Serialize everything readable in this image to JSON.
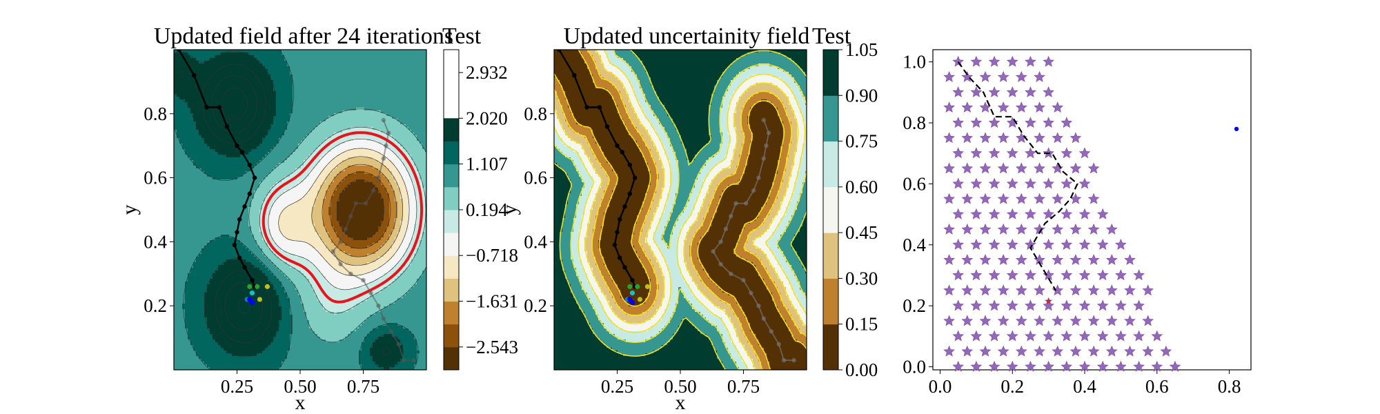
{
  "figure": {
    "panels": [
      {
        "title": "Updated field after 24 iterations",
        "colorbar_label": "Test",
        "xlabel": "x",
        "ylabel": "y"
      },
      {
        "title": "Updated uncertainity field",
        "colorbar_label": "Test",
        "xlabel": "x",
        "ylabel": "y"
      },
      {
        "title": "",
        "xlabel": "",
        "ylabel": ""
      }
    ]
  },
  "chart_data": [
    {
      "type": "heatmap",
      "title": "Updated field after 24 iterations",
      "xlabel": "x",
      "ylabel": "y",
      "xlim": [
        0,
        1
      ],
      "ylim": [
        0,
        1
      ],
      "xticks": [
        "0.25",
        "0.50",
        "0.75"
      ],
      "yticks": [
        "0.2",
        "0.4",
        "0.6",
        "0.8"
      ],
      "colorbar": {
        "label": "Test",
        "ticks": [
          "−2.543",
          "−1.631",
          "−0.718",
          "0.194",
          "1.107",
          "2.020",
          "2.932"
        ],
        "levels": [
          -3.0,
          -2.543,
          -2.087,
          -1.631,
          -1.175,
          -0.718,
          -0.262,
          0.194,
          0.65,
          1.107,
          1.563,
          2.02,
          2.476,
          2.932,
          3.388
        ],
        "colors": [
          "#543005",
          "#8c510a",
          "#bf812d",
          "#dfc27d",
          "#f6e8c3",
          "#f5f5f5",
          "#c7eae5",
          "#80cdc1",
          "#35978f",
          "#01665e",
          "#003c30"
        ]
      },
      "highlight_contour": {
        "level": 0,
        "color": "#e8141b"
      },
      "path": [
        [
          0.02,
          1.0
        ],
        [
          0.08,
          0.92
        ],
        [
          0.13,
          0.82
        ],
        [
          0.18,
          0.82
        ],
        [
          0.21,
          0.76
        ],
        [
          0.25,
          0.7
        ],
        [
          0.27,
          0.68
        ],
        [
          0.3,
          0.64
        ],
        [
          0.32,
          0.6
        ],
        [
          0.3,
          0.55
        ],
        [
          0.28,
          0.51
        ],
        [
          0.26,
          0.47
        ],
        [
          0.25,
          0.43
        ],
        [
          0.24,
          0.39
        ],
        [
          0.26,
          0.35
        ],
        [
          0.28,
          0.32
        ],
        [
          0.31,
          0.28
        ],
        [
          0.32,
          0.26
        ]
      ],
      "path_faded": [
        [
          0.83,
          0.78
        ],
        [
          0.85,
          0.74
        ],
        [
          0.84,
          0.7
        ],
        [
          0.83,
          0.66
        ],
        [
          0.81,
          0.6
        ],
        [
          0.79,
          0.56
        ],
        [
          0.76,
          0.52
        ],
        [
          0.72,
          0.52
        ],
        [
          0.7,
          0.48
        ],
        [
          0.68,
          0.44
        ],
        [
          0.66,
          0.4
        ],
        [
          0.63,
          0.37
        ],
        [
          0.66,
          0.33
        ],
        [
          0.7,
          0.3
        ],
        [
          0.75,
          0.28
        ],
        [
          0.78,
          0.24
        ],
        [
          0.81,
          0.2
        ],
        [
          0.83,
          0.16
        ],
        [
          0.86,
          0.12
        ],
        [
          0.89,
          0.08
        ],
        [
          0.91,
          0.03
        ],
        [
          0.95,
          0.03
        ]
      ],
      "samples": [
        {
          "x": 0.3,
          "y": 0.26,
          "color": "#2ca02c"
        },
        {
          "x": 0.33,
          "y": 0.26,
          "color": "#2ca02c"
        },
        {
          "x": 0.37,
          "y": 0.26,
          "color": "#bcbd22"
        },
        {
          "x": 0.31,
          "y": 0.24,
          "color": "#17becf"
        },
        {
          "x": 0.29,
          "y": 0.22,
          "color": "#1f77b4"
        },
        {
          "x": 0.3,
          "y": 0.22,
          "color": "#0000ff"
        },
        {
          "x": 0.34,
          "y": 0.22,
          "color": "#bcbd22"
        },
        {
          "x": 0.31,
          "y": 0.21,
          "color": "#0000ff"
        }
      ]
    },
    {
      "type": "heatmap",
      "title": "Updated uncertainity field",
      "xlabel": "x",
      "ylabel": "y",
      "xlim": [
        0,
        1
      ],
      "ylim": [
        0,
        1
      ],
      "xticks": [
        "0.25",
        "0.50",
        "0.75"
      ],
      "yticks": [
        "0.2",
        "0.4",
        "0.6",
        "0.8"
      ],
      "colorbar": {
        "label": "Test",
        "ticks": [
          "0.00",
          "0.15",
          "0.30",
          "0.45",
          "0.60",
          "0.75",
          "0.90",
          "1.05"
        ],
        "levels": [
          0.0,
          0.15,
          0.3,
          0.45,
          0.6,
          0.75,
          0.9,
          1.05
        ],
        "colors": [
          "#543005",
          "#bf812d",
          "#dfc27d",
          "#f6f6f0",
          "#c7eae5",
          "#35978f",
          "#003c30"
        ]
      },
      "path": [
        [
          0.02,
          1.0
        ],
        [
          0.08,
          0.92
        ],
        [
          0.13,
          0.82
        ],
        [
          0.18,
          0.82
        ],
        [
          0.21,
          0.76
        ],
        [
          0.25,
          0.7
        ],
        [
          0.27,
          0.68
        ],
        [
          0.3,
          0.64
        ],
        [
          0.32,
          0.6
        ],
        [
          0.3,
          0.55
        ],
        [
          0.28,
          0.51
        ],
        [
          0.26,
          0.47
        ],
        [
          0.25,
          0.43
        ],
        [
          0.24,
          0.39
        ],
        [
          0.26,
          0.35
        ],
        [
          0.28,
          0.32
        ],
        [
          0.31,
          0.28
        ],
        [
          0.32,
          0.26
        ]
      ],
      "path_faded": [
        [
          0.83,
          0.78
        ],
        [
          0.85,
          0.74
        ],
        [
          0.84,
          0.7
        ],
        [
          0.83,
          0.66
        ],
        [
          0.81,
          0.6
        ],
        [
          0.79,
          0.56
        ],
        [
          0.76,
          0.52
        ],
        [
          0.72,
          0.52
        ],
        [
          0.7,
          0.48
        ],
        [
          0.68,
          0.44
        ],
        [
          0.66,
          0.4
        ],
        [
          0.63,
          0.37
        ],
        [
          0.66,
          0.33
        ],
        [
          0.7,
          0.3
        ],
        [
          0.75,
          0.28
        ],
        [
          0.78,
          0.24
        ],
        [
          0.81,
          0.2
        ],
        [
          0.83,
          0.16
        ],
        [
          0.86,
          0.12
        ],
        [
          0.89,
          0.08
        ],
        [
          0.91,
          0.03
        ],
        [
          0.95,
          0.03
        ]
      ],
      "samples": [
        {
          "x": 0.3,
          "y": 0.26,
          "color": "#2ca02c"
        },
        {
          "x": 0.33,
          "y": 0.26,
          "color": "#2ca02c"
        },
        {
          "x": 0.37,
          "y": 0.26,
          "color": "#bcbd22"
        },
        {
          "x": 0.31,
          "y": 0.24,
          "color": "#17becf"
        },
        {
          "x": 0.29,
          "y": 0.22,
          "color": "#1f77b4"
        },
        {
          "x": 0.3,
          "y": 0.22,
          "color": "#0000ff"
        },
        {
          "x": 0.34,
          "y": 0.22,
          "color": "#bcbd22"
        },
        {
          "x": 0.31,
          "y": 0.21,
          "color": "#0000ff"
        }
      ]
    },
    {
      "type": "scatter",
      "title": "",
      "xlabel": "",
      "ylabel": "",
      "xlim": [
        -0.02,
        0.86
      ],
      "ylim": [
        -0.01,
        1.04
      ],
      "xticks": [
        "0.0",
        "0.2",
        "0.4",
        "0.6",
        "0.8"
      ],
      "yticks": [
        "0.0",
        "0.2",
        "0.4",
        "0.6",
        "0.8",
        "1.0"
      ],
      "grid": {
        "rows": 21,
        "y_step": 0.05,
        "x_step": 0.05,
        "star_color": "#9467bd",
        "top_row_x_start": 0.05,
        "top_row_x_end": 0.3
      },
      "path": [
        [
          0.05,
          1.0
        ],
        [
          0.08,
          0.95
        ],
        [
          0.12,
          0.9
        ],
        [
          0.15,
          0.82
        ],
        [
          0.2,
          0.82
        ],
        [
          0.23,
          0.76
        ],
        [
          0.27,
          0.7
        ],
        [
          0.31,
          0.7
        ],
        [
          0.34,
          0.64
        ],
        [
          0.38,
          0.6
        ],
        [
          0.36,
          0.55
        ],
        [
          0.33,
          0.51
        ],
        [
          0.29,
          0.47
        ],
        [
          0.27,
          0.43
        ],
        [
          0.25,
          0.39
        ],
        [
          0.27,
          0.35
        ],
        [
          0.29,
          0.31
        ],
        [
          0.31,
          0.27
        ],
        [
          0.32,
          0.25
        ]
      ],
      "target": {
        "x": 0.3,
        "y": 0.215,
        "color": "#d62728"
      },
      "outlier": {
        "x": 0.82,
        "y": 0.78,
        "color": "#0000ff"
      }
    }
  ]
}
